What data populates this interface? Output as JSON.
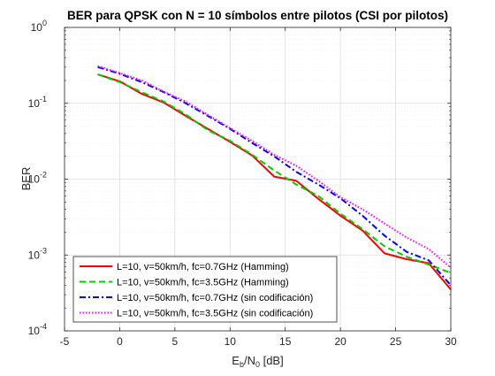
{
  "chart_data": {
    "type": "line",
    "title": "BER para QPSK con N = 10 símbolos entre pilotos (CSI por pilotos)",
    "xlabel": {
      "base": "E",
      "sub1": "b",
      "mid": "/N",
      "sub2": "0",
      "tail": " [dB]"
    },
    "ylabel": "BER",
    "xlim": [
      -5,
      30
    ],
    "ylim": [
      0.0001,
      1
    ],
    "yscale": "log",
    "grid": true,
    "legend_position": "bottom-left",
    "x_ticks": [
      "-5",
      "0",
      "5",
      "10",
      "15",
      "20",
      "25",
      "30"
    ],
    "y_ticks": [
      {
        "base": "10",
        "exp": "-4"
      },
      {
        "base": "10",
        "exp": "-3"
      },
      {
        "base": "10",
        "exp": "-2"
      },
      {
        "base": "10",
        "exp": "-1"
      },
      {
        "base": "10",
        "exp": "0"
      }
    ],
    "x": [
      -2,
      0,
      2,
      4,
      6,
      8,
      10,
      12,
      14,
      16,
      18,
      20,
      22,
      24,
      26,
      28,
      30
    ],
    "series": [
      {
        "name": "L=10, v=50km/h, fc=0.7GHz (Hamming)",
        "color": "#ff0000",
        "style": "solid",
        "values": [
          0.24,
          0.195,
          0.133,
          0.102,
          0.068,
          0.046,
          0.031,
          0.0205,
          0.0108,
          0.0095,
          0.0055,
          0.0033,
          0.0021,
          0.00105,
          0.00088,
          0.00078,
          0.00035
        ]
      },
      {
        "name": "L=10, v=50km/h, fc=3.5GHz (Hamming)",
        "color": "#00cc00",
        "style": "dashed",
        "values": [
          0.24,
          0.19,
          0.14,
          0.105,
          0.071,
          0.044,
          0.032,
          0.021,
          0.013,
          0.0085,
          0.006,
          0.0035,
          0.0022,
          0.0013,
          0.00095,
          0.00075,
          0.00058
        ]
      },
      {
        "name": "L=10, v=50km/h, fc=0.7GHz (sin codificación)",
        "color": "#0000ff",
        "style": "dashdot",
        "values": [
          0.3,
          0.245,
          0.19,
          0.14,
          0.1,
          0.068,
          0.046,
          0.03,
          0.02,
          0.0125,
          0.0085,
          0.0056,
          0.0033,
          0.0018,
          0.0011,
          0.00085,
          0.0004
        ]
      },
      {
        "name": "L=10, v=50km/h, fc=3.5GHz (sin codificación)",
        "color": "#ff00ff",
        "style": "dotted",
        "values": [
          0.31,
          0.25,
          0.2,
          0.142,
          0.105,
          0.07,
          0.047,
          0.032,
          0.021,
          0.015,
          0.0095,
          0.0058,
          0.004,
          0.0026,
          0.0017,
          0.0012,
          0.00068
        ]
      }
    ]
  }
}
